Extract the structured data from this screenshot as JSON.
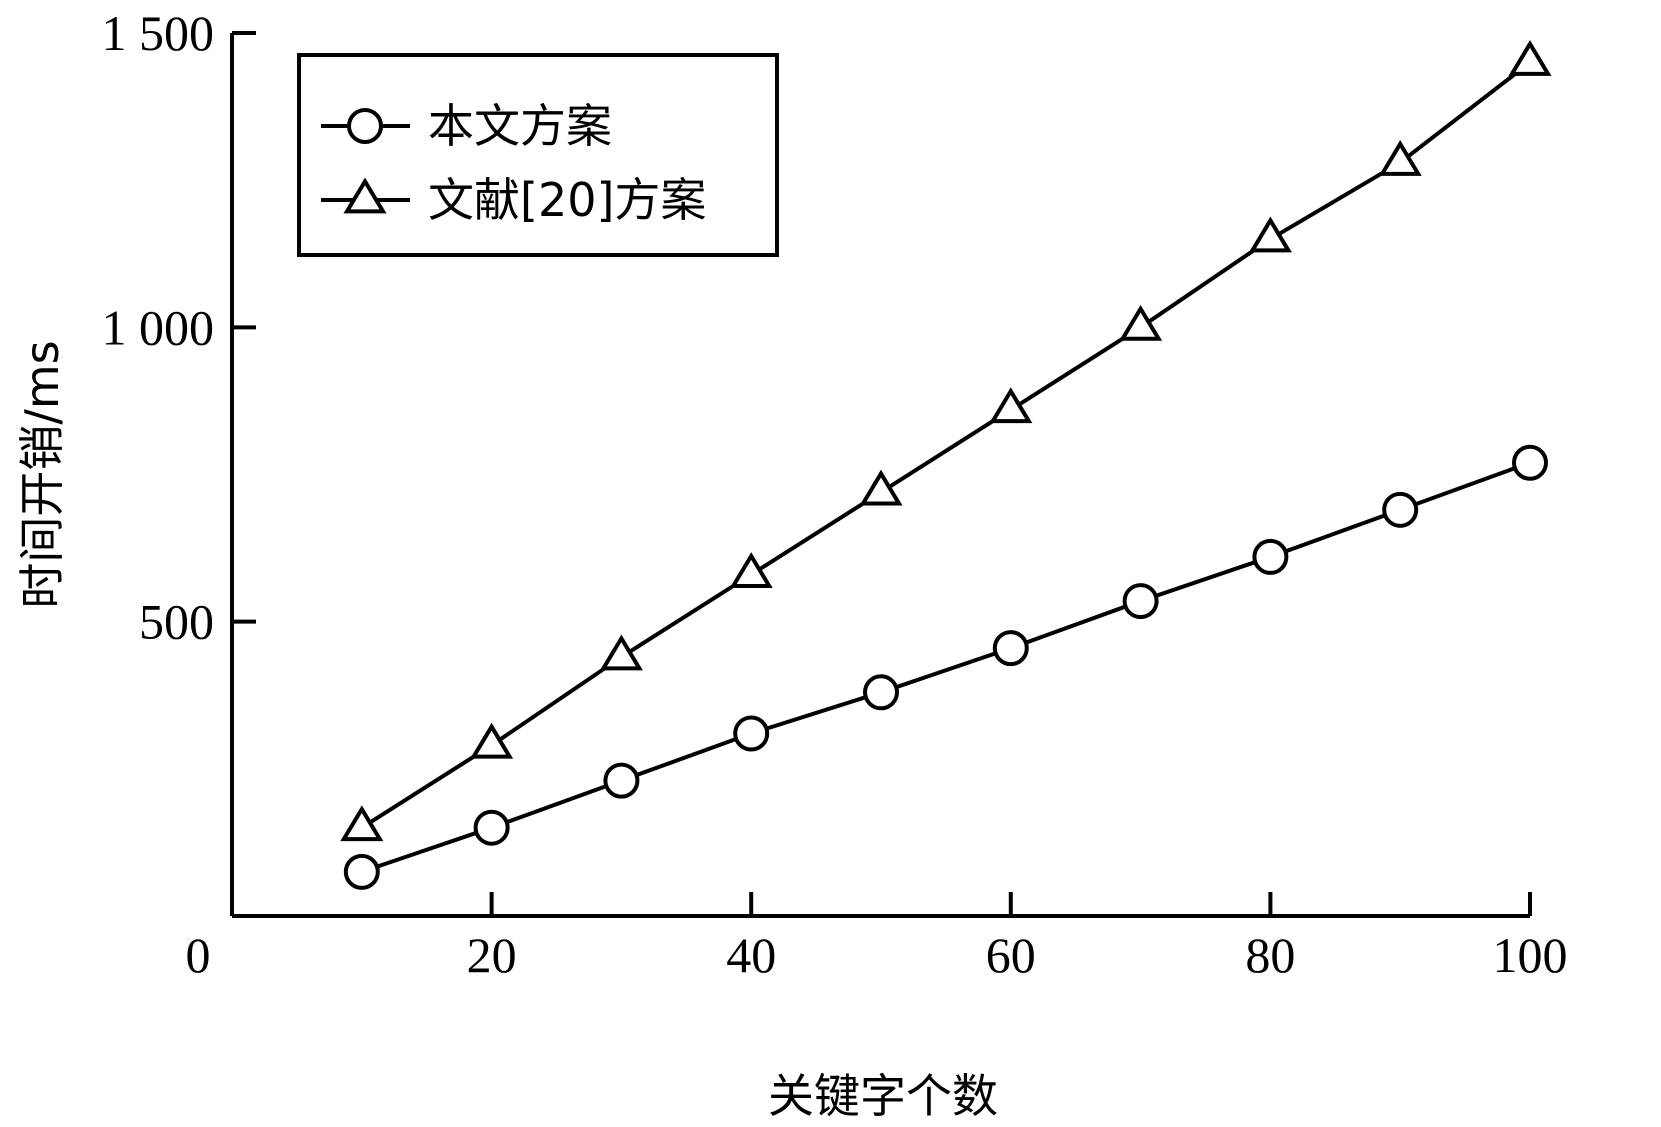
{
  "chart_data": {
    "type": "line",
    "title": "",
    "xlabel": "关键字个数",
    "ylabel": "时间开销/ms",
    "xlim": [
      0,
      100
    ],
    "ylim": [
      0,
      1500
    ],
    "x_ticks": [
      {
        "value": 0,
        "label": "0"
      },
      {
        "value": 20,
        "label": "20"
      },
      {
        "value": 40,
        "label": "40"
      },
      {
        "value": 60,
        "label": "60"
      },
      {
        "value": 80,
        "label": "80"
      },
      {
        "value": 100,
        "label": "100"
      }
    ],
    "y_ticks": [
      {
        "value": 500,
        "label": "500"
      },
      {
        "value": 1000,
        "label": "1 000"
      },
      {
        "value": 1500,
        "label": "1 500"
      }
    ],
    "x": [
      10,
      20,
      30,
      40,
      50,
      60,
      70,
      80,
      90,
      100
    ],
    "series": [
      {
        "name": "本文方案",
        "marker": "circle",
        "values": [
          75,
          150,
          230,
          310,
          380,
          455,
          535,
          610,
          690,
          770
        ]
      },
      {
        "name": "文献[20]方案",
        "marker": "triangle",
        "values": [
          150,
          290,
          440,
          580,
          720,
          860,
          1000,
          1150,
          1280,
          1450
        ]
      }
    ],
    "grid": false,
    "legend_position": "top-left",
    "colors": {
      "line": "#000000",
      "marker_fill": "#ffffff",
      "background": "#ffffff"
    }
  }
}
